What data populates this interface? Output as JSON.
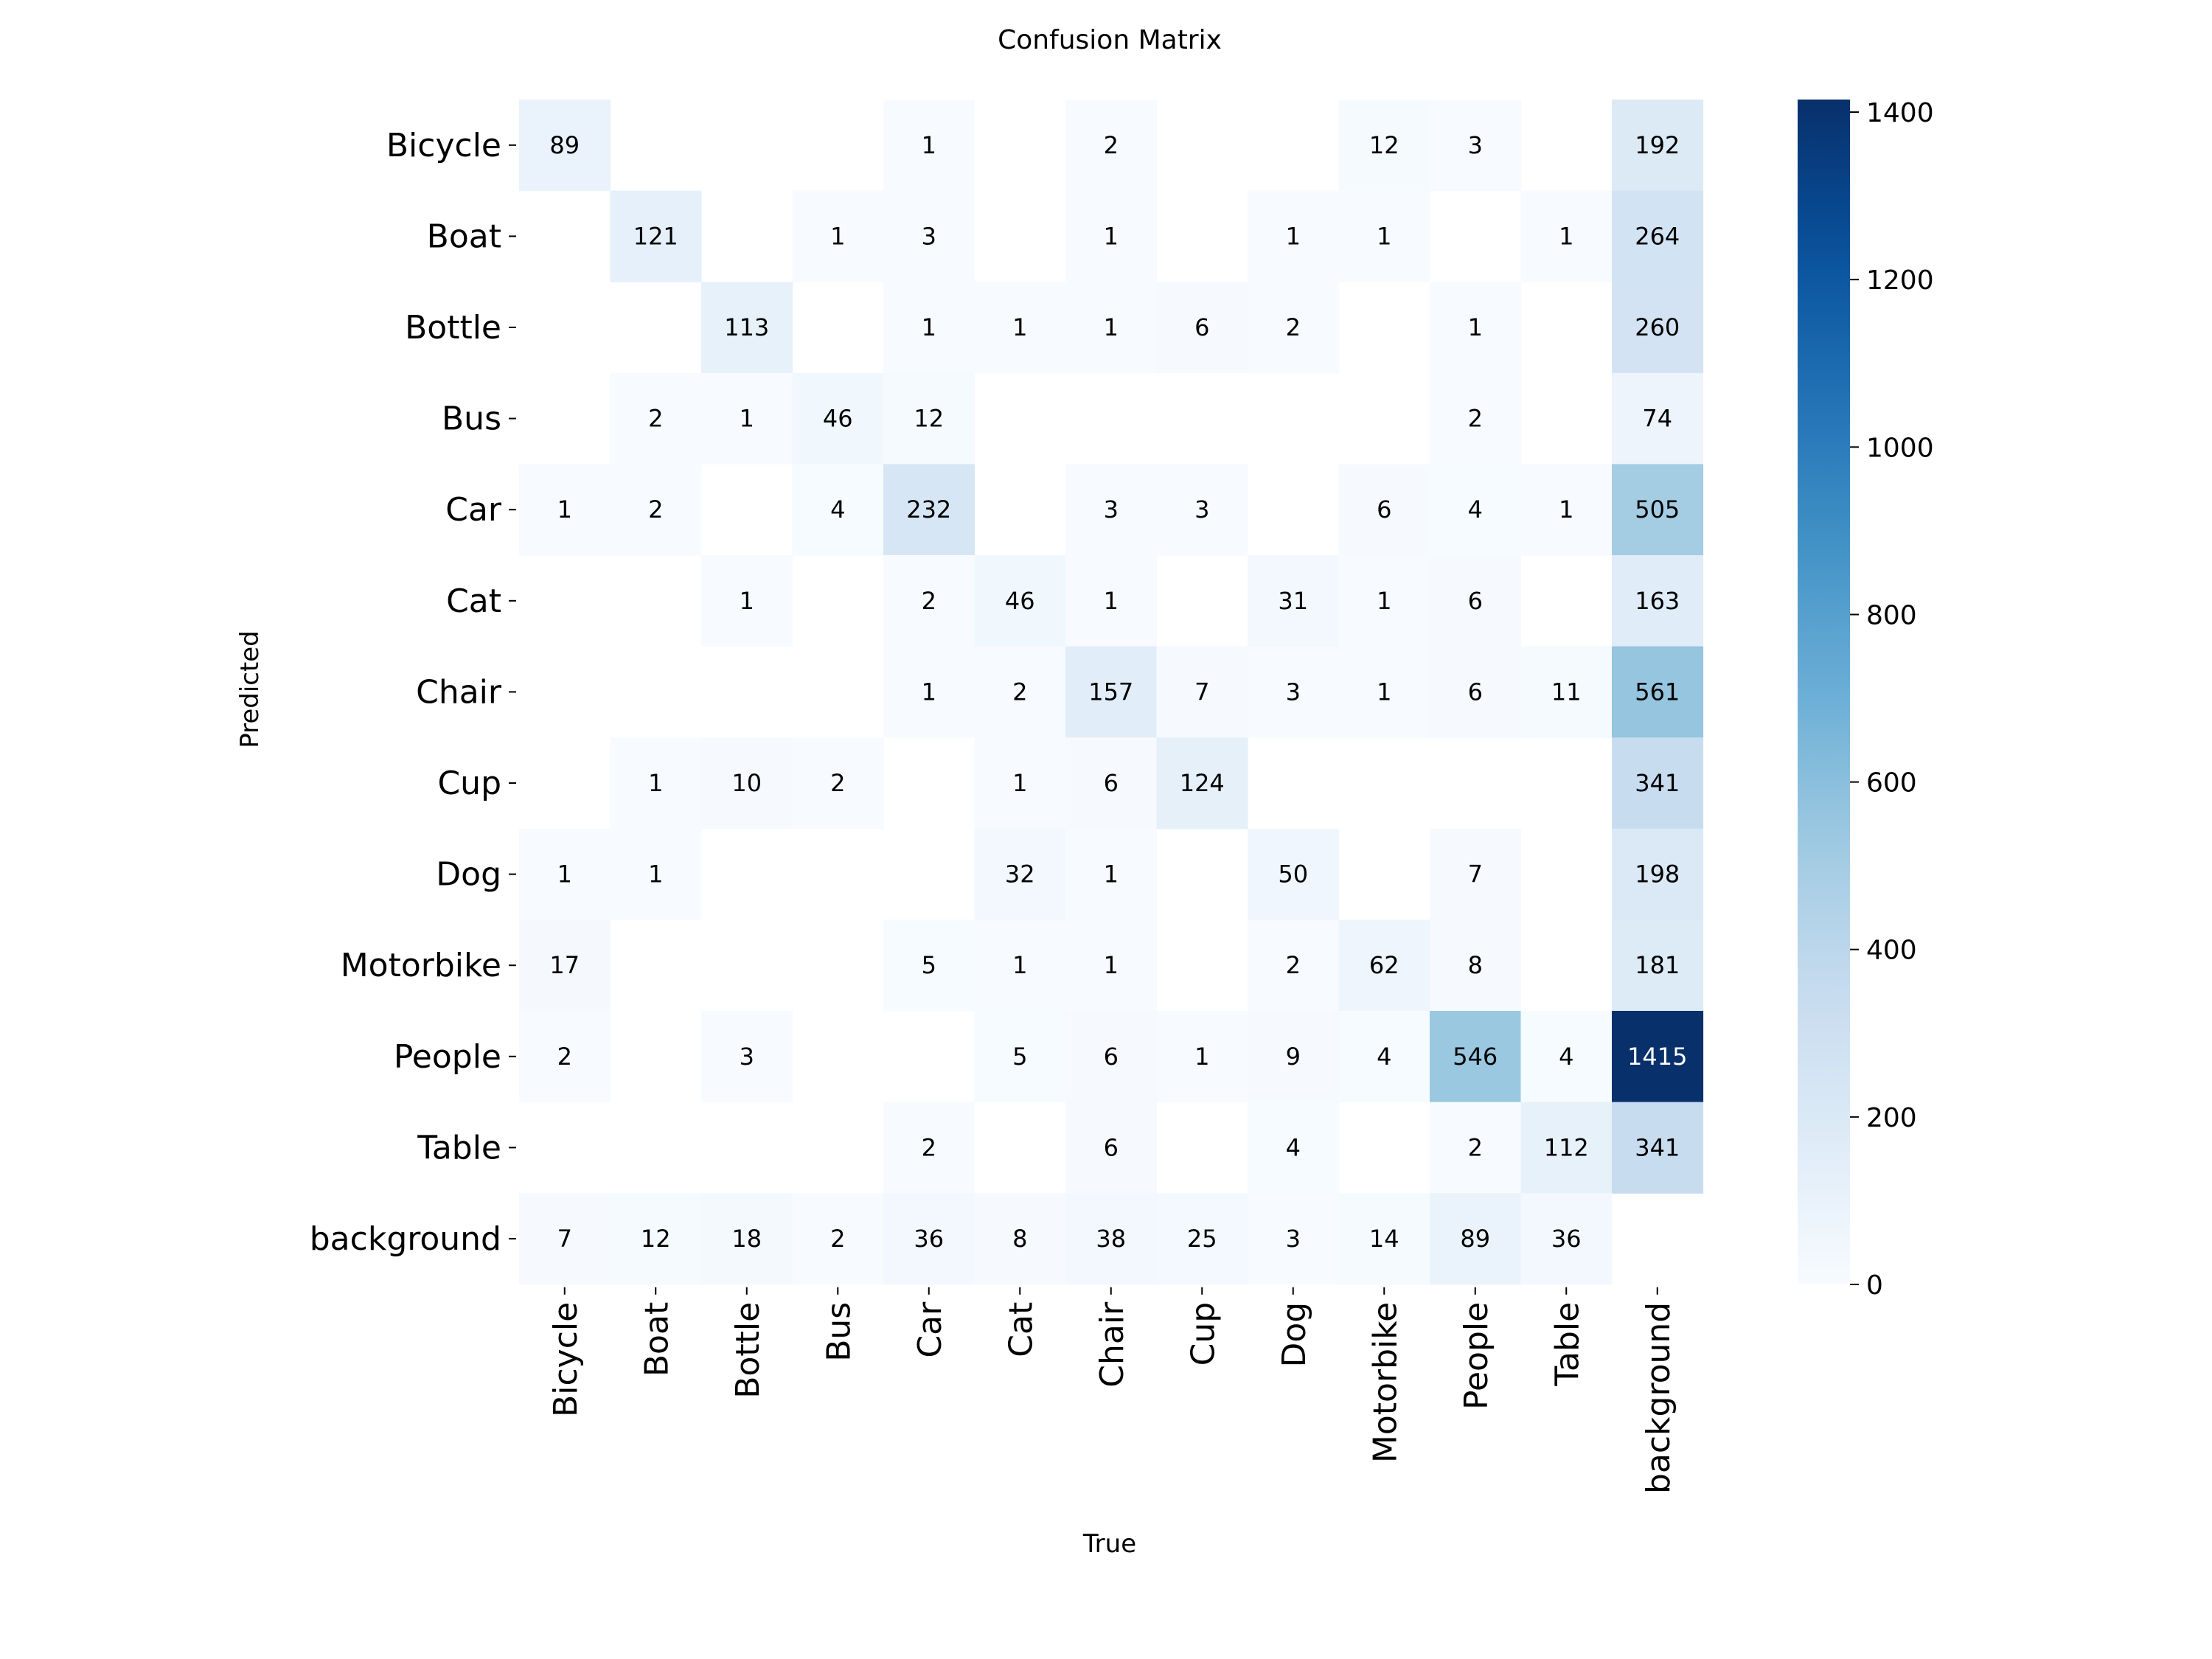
{
  "chart_data": {
    "type": "heatmap",
    "title": "Confusion Matrix",
    "xlabel": "True",
    "ylabel": "Predicted",
    "categories": [
      "Bicycle",
      "Boat",
      "Bottle",
      "Bus",
      "Car",
      "Cat",
      "Chair",
      "Cup",
      "Dog",
      "Motorbike",
      "People",
      "Table",
      "background"
    ],
    "values": [
      [
        89,
        null,
        null,
        null,
        1,
        null,
        2,
        null,
        null,
        12,
        3,
        null,
        192
      ],
      [
        null,
        121,
        null,
        1,
        3,
        null,
        1,
        null,
        1,
        1,
        null,
        1,
        264
      ],
      [
        null,
        null,
        113,
        null,
        1,
        1,
        1,
        6,
        2,
        null,
        1,
        null,
        260
      ],
      [
        null,
        2,
        1,
        46,
        12,
        null,
        null,
        null,
        null,
        null,
        2,
        null,
        74
      ],
      [
        1,
        2,
        null,
        4,
        232,
        null,
        3,
        3,
        null,
        6,
        4,
        1,
        505
      ],
      [
        null,
        null,
        1,
        null,
        2,
        46,
        1,
        null,
        31,
        1,
        6,
        null,
        163
      ],
      [
        null,
        null,
        null,
        null,
        1,
        2,
        157,
        7,
        3,
        1,
        6,
        11,
        561
      ],
      [
        null,
        1,
        10,
        2,
        null,
        1,
        6,
        124,
        null,
        null,
        null,
        null,
        341
      ],
      [
        1,
        1,
        null,
        null,
        null,
        32,
        1,
        null,
        50,
        null,
        7,
        null,
        198
      ],
      [
        17,
        null,
        null,
        null,
        5,
        1,
        1,
        null,
        2,
        62,
        8,
        null,
        181
      ],
      [
        2,
        null,
        3,
        null,
        null,
        5,
        6,
        1,
        9,
        4,
        546,
        4,
        1415
      ],
      [
        null,
        null,
        null,
        null,
        2,
        null,
        6,
        null,
        4,
        null,
        2,
        112,
        341
      ],
      [
        7,
        12,
        18,
        2,
        36,
        8,
        38,
        25,
        3,
        14,
        89,
        36,
        null
      ]
    ],
    "colorbar": {
      "range": [
        0,
        1415
      ],
      "ticks": [
        0,
        200,
        400,
        600,
        800,
        1000,
        1200,
        1400
      ],
      "colormap": "Blues"
    },
    "colors": {
      "low": "#f7fbff",
      "high": "#08306b"
    },
    "grid": false,
    "legend": "none"
  }
}
